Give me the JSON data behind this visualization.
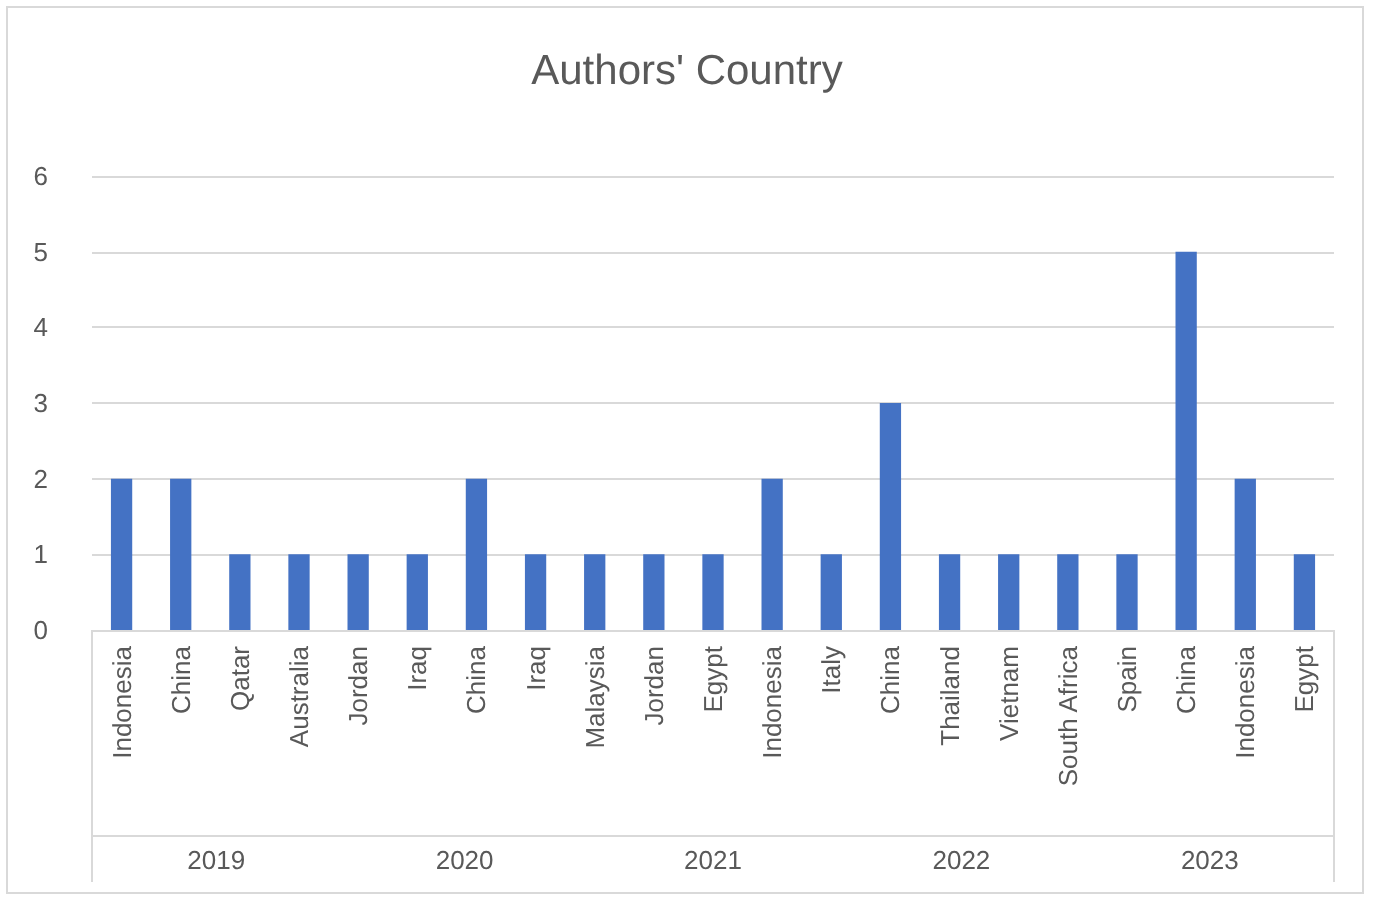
{
  "chart_data": {
    "type": "bar",
    "title": "Authors' Country",
    "categories": [
      "Indonesia",
      "China",
      "Qatar",
      "Australia",
      "Jordan",
      "Iraq",
      "China",
      "Iraq",
      "Malaysia",
      "Jordan",
      "Egypt",
      "Indonesia",
      "Italy",
      "China",
      "Thailand",
      "Vietnam",
      "South Africa",
      "Spain",
      "China",
      "Indonesia",
      "Egypt"
    ],
    "values": [
      2,
      2,
      1,
      1,
      1,
      1,
      2,
      1,
      1,
      1,
      1,
      2,
      1,
      3,
      1,
      1,
      1,
      1,
      5,
      2,
      1
    ],
    "color": "#4472c4",
    "ylim": [
      0,
      6
    ],
    "yticks": [
      0,
      1,
      2,
      3,
      4,
      5,
      6
    ],
    "grid": "y",
    "annotations": [
      "2019",
      "2020",
      "2021",
      "2022",
      "2023"
    ]
  }
}
